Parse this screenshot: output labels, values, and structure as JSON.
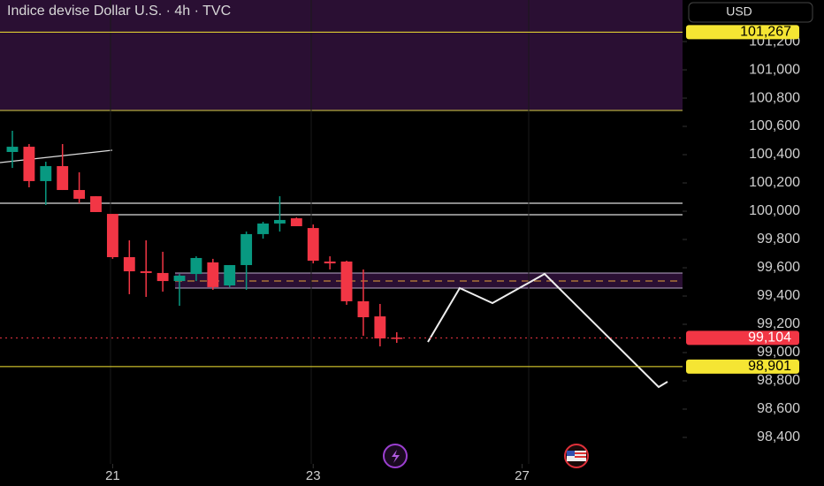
{
  "chart_data": {
    "type": "candlestick",
    "title": "Indice devise Dollar U.S. · 4h · TVC",
    "currency": "USD",
    "up_color": "#089981",
    "down_color": "#f23645",
    "open": [
      100.419,
      100.456,
      100.213,
      100.319,
      100.15,
      100.106,
      99.981,
      99.675,
      99.575,
      99.563,
      99.506,
      99.556,
      99.638,
      99.475,
      99.619,
      99.838,
      99.913,
      99.95,
      99.881,
      99.644,
      99.644,
      99.363,
      99.256,
      99.106
    ],
    "high": [
      100.569,
      100.475,
      100.35,
      100.475,
      100.275,
      100.106,
      99.981,
      99.794,
      99.794,
      99.713,
      99.556,
      99.681,
      99.663,
      99.619,
      99.856,
      99.925,
      100.106,
      99.956,
      99.906,
      99.681,
      99.65,
      99.588,
      99.344,
      99.144
    ],
    "low": [
      100.306,
      100.169,
      100.044,
      100.15,
      100.056,
      99.994,
      99.663,
      99.413,
      99.394,
      99.431,
      99.331,
      99.506,
      99.444,
      99.463,
      99.444,
      99.806,
      99.856,
      99.894,
      99.631,
      99.588,
      99.338,
      99.119,
      99.044,
      99.069
    ],
    "close": [
      100.456,
      100.213,
      100.319,
      100.15,
      100.088,
      99.994,
      99.675,
      99.575,
      99.563,
      99.506,
      99.544,
      99.669,
      99.463,
      99.619,
      99.838,
      99.913,
      99.938,
      99.894,
      99.65,
      99.631,
      99.363,
      99.25,
      99.1,
      99.1
    ],
    "xlim": [
      -0.74,
      40.1
    ],
    "xticks": [
      {
        "value": 6,
        "label": "21"
      },
      {
        "value": 18,
        "label": "23"
      },
      {
        "value": 30.5,
        "label": "27"
      }
    ],
    "ylim": [
      98.2125,
      101.494
    ],
    "yticks": [
      {
        "value": 98.4,
        "label": "98,400"
      },
      {
        "value": 98.6,
        "label": "98,600"
      },
      {
        "value": 98.8,
        "label": "98,800"
      },
      {
        "value": 99.0,
        "label": "99,000"
      },
      {
        "value": 99.2,
        "label": "99,200"
      },
      {
        "value": 99.4,
        "label": "99,400"
      },
      {
        "value": 99.6,
        "label": "99,600"
      },
      {
        "value": 99.8,
        "label": "99,800"
      },
      {
        "value": 100.0,
        "label": "100,000"
      },
      {
        "value": 100.2,
        "label": "100,200"
      },
      {
        "value": 100.4,
        "label": "100,400"
      },
      {
        "value": 100.6,
        "label": "100,600"
      },
      {
        "value": 100.8,
        "label": "100,800"
      },
      {
        "value": 101.0,
        "label": "101,000"
      },
      {
        "value": 101.2,
        "label": "101,200"
      }
    ],
    "price_labels": [
      {
        "value": 101.267,
        "label": "101,267",
        "color": "#f5e533"
      },
      {
        "value": 99.104,
        "label": "99,104",
        "color": "#f23645"
      },
      {
        "value": 98.901,
        "label": "98,901",
        "color": "#f5e533"
      }
    ]
  }
}
